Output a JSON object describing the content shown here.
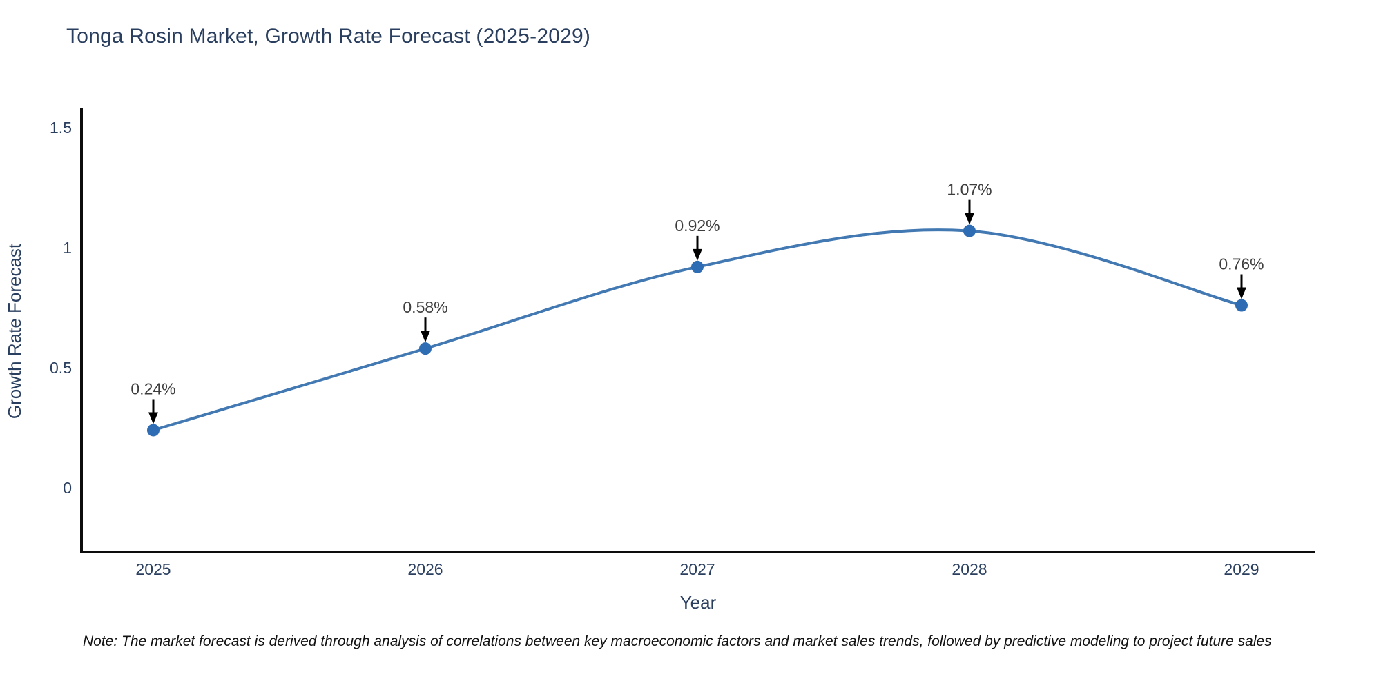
{
  "title": "Tonga Rosin Market, Growth Rate Forecast (2025-2029)",
  "note": "Note: The market forecast is derived through analysis of correlations between key macroeconomic factors and market sales trends, followed by predictive modeling to project future sales",
  "chart_data": {
    "type": "line",
    "title": "Tonga Rosin Market, Growth Rate Forecast (2025-2029)",
    "xlabel": "Year",
    "ylabel": "Growth Rate Forecast",
    "x": [
      2025,
      2026,
      2027,
      2028,
      2029
    ],
    "categories": [
      "2025",
      "2026",
      "2027",
      "2028",
      "2029"
    ],
    "values": [
      0.24,
      0.58,
      0.92,
      1.07,
      0.76
    ],
    "point_labels": [
      "0.24%",
      "0.58%",
      "0.92%",
      "1.07%",
      "0.76%"
    ],
    "yticks": [
      0,
      0.5,
      1,
      1.5
    ],
    "ytick_labels": [
      "0",
      "0.5",
      "1",
      "1.5"
    ],
    "ylim": [
      -0.27,
      1.58
    ],
    "xlim": [
      2024.73,
      2029.27
    ],
    "line_shape": "spline",
    "grid": false,
    "legend": "none",
    "colors": {
      "line": "#4379b2",
      "marker": "#2e6db4",
      "axis": "#0d0d0d",
      "axis_text": "#2a3f5f",
      "annotation_text": "#3d3d3d",
      "annotation_arrow": "#000000",
      "background": "#ffffff"
    }
  }
}
